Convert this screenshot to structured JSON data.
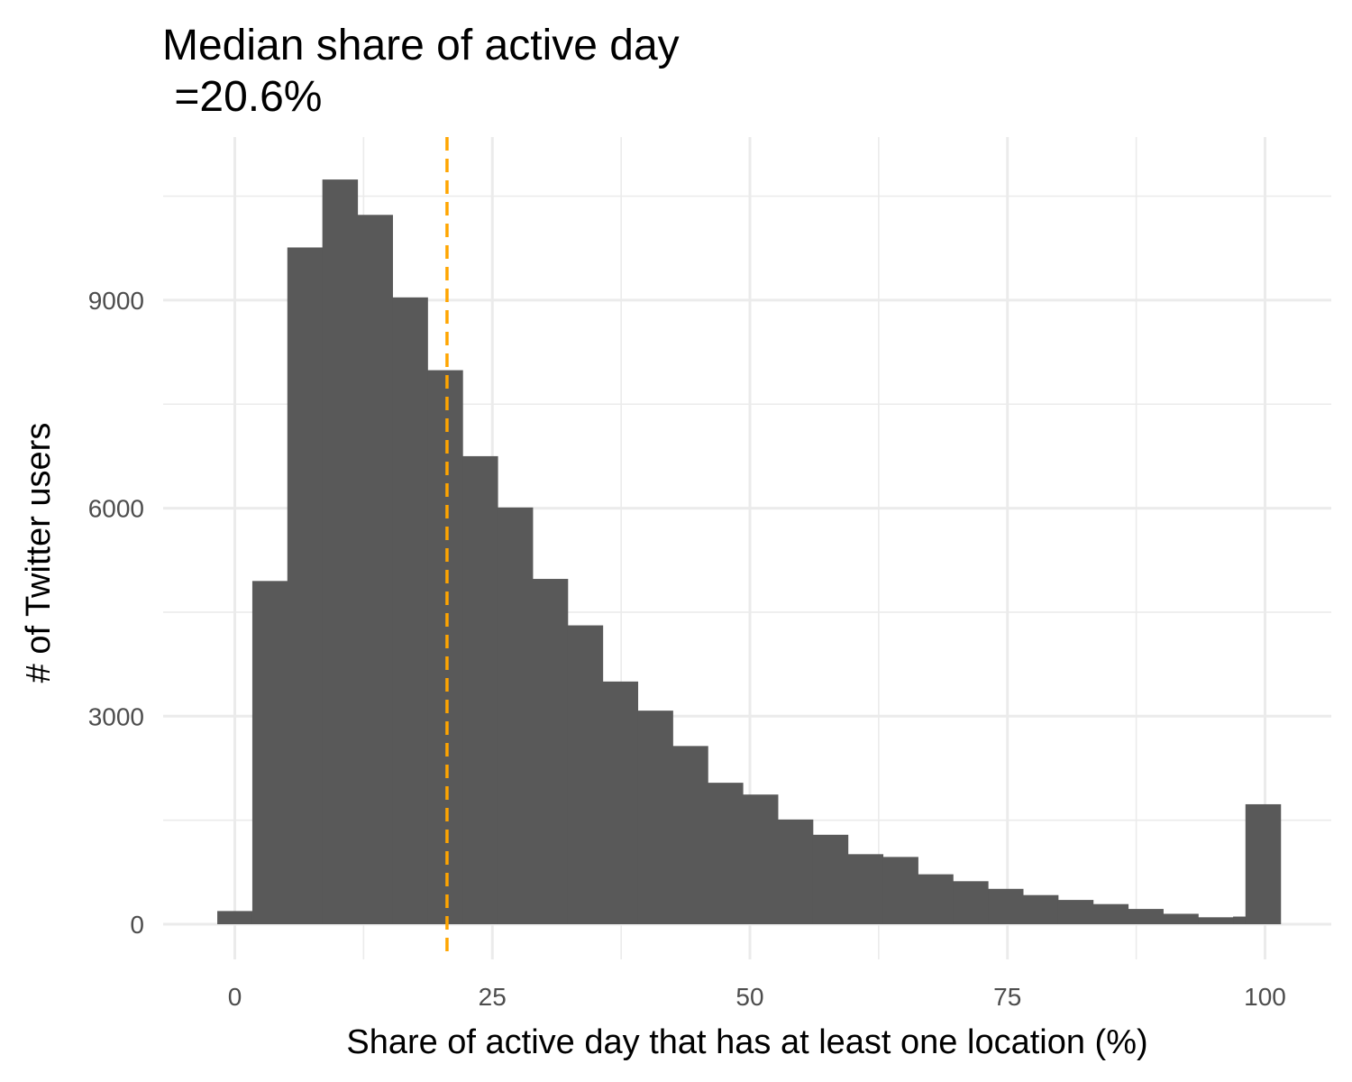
{
  "chart_data": {
    "type": "bar",
    "title_line1": "Median share of active day",
    "title_line2": " =20.6%",
    "xlabel": "Share of active day that has at least one location (%)",
    "ylabel": "# of Twitter users",
    "x_ticks": [
      "0",
      "25",
      "50",
      "75",
      "100"
    ],
    "y_ticks": [
      "0",
      "3000",
      "6000",
      "9000"
    ],
    "xlim": [
      -3,
      106
    ],
    "ylim": [
      -500,
      11200
    ],
    "grid": "on",
    "median_line": {
      "x": 20.6,
      "color": "#FFA500",
      "style": "dashed"
    },
    "bar_color": "#595959",
    "bin_width": 3.4,
    "bins": [
      {
        "x0": -1.7,
        "count": 190
      },
      {
        "x0": 1.7,
        "count": 4950
      },
      {
        "x0": 5.1,
        "count": 9760
      },
      {
        "x0": 8.5,
        "count": 10740
      },
      {
        "x0": 11.9,
        "count": 10230
      },
      {
        "x0": 15.3,
        "count": 9040
      },
      {
        "x0": 18.7,
        "count": 7990
      },
      {
        "x0": 22.1,
        "count": 6750
      },
      {
        "x0": 25.5,
        "count": 6010
      },
      {
        "x0": 28.9,
        "count": 4980
      },
      {
        "x0": 32.3,
        "count": 4310
      },
      {
        "x0": 35.7,
        "count": 3500
      },
      {
        "x0": 39.1,
        "count": 3080
      },
      {
        "x0": 42.5,
        "count": 2570
      },
      {
        "x0": 45.9,
        "count": 2040
      },
      {
        "x0": 49.3,
        "count": 1870
      },
      {
        "x0": 52.7,
        "count": 1510
      },
      {
        "x0": 56.1,
        "count": 1290
      },
      {
        "x0": 59.5,
        "count": 1010
      },
      {
        "x0": 62.9,
        "count": 970
      },
      {
        "x0": 66.3,
        "count": 720
      },
      {
        "x0": 69.7,
        "count": 620
      },
      {
        "x0": 73.1,
        "count": 510
      },
      {
        "x0": 76.5,
        "count": 420
      },
      {
        "x0": 79.9,
        "count": 350
      },
      {
        "x0": 83.3,
        "count": 290
      },
      {
        "x0": 86.7,
        "count": 220
      },
      {
        "x0": 90.1,
        "count": 150
      },
      {
        "x0": 93.5,
        "count": 100
      },
      {
        "x0": 96.9,
        "count": 110
      },
      {
        "x0": 98.1,
        "count": 1730
      }
    ]
  }
}
